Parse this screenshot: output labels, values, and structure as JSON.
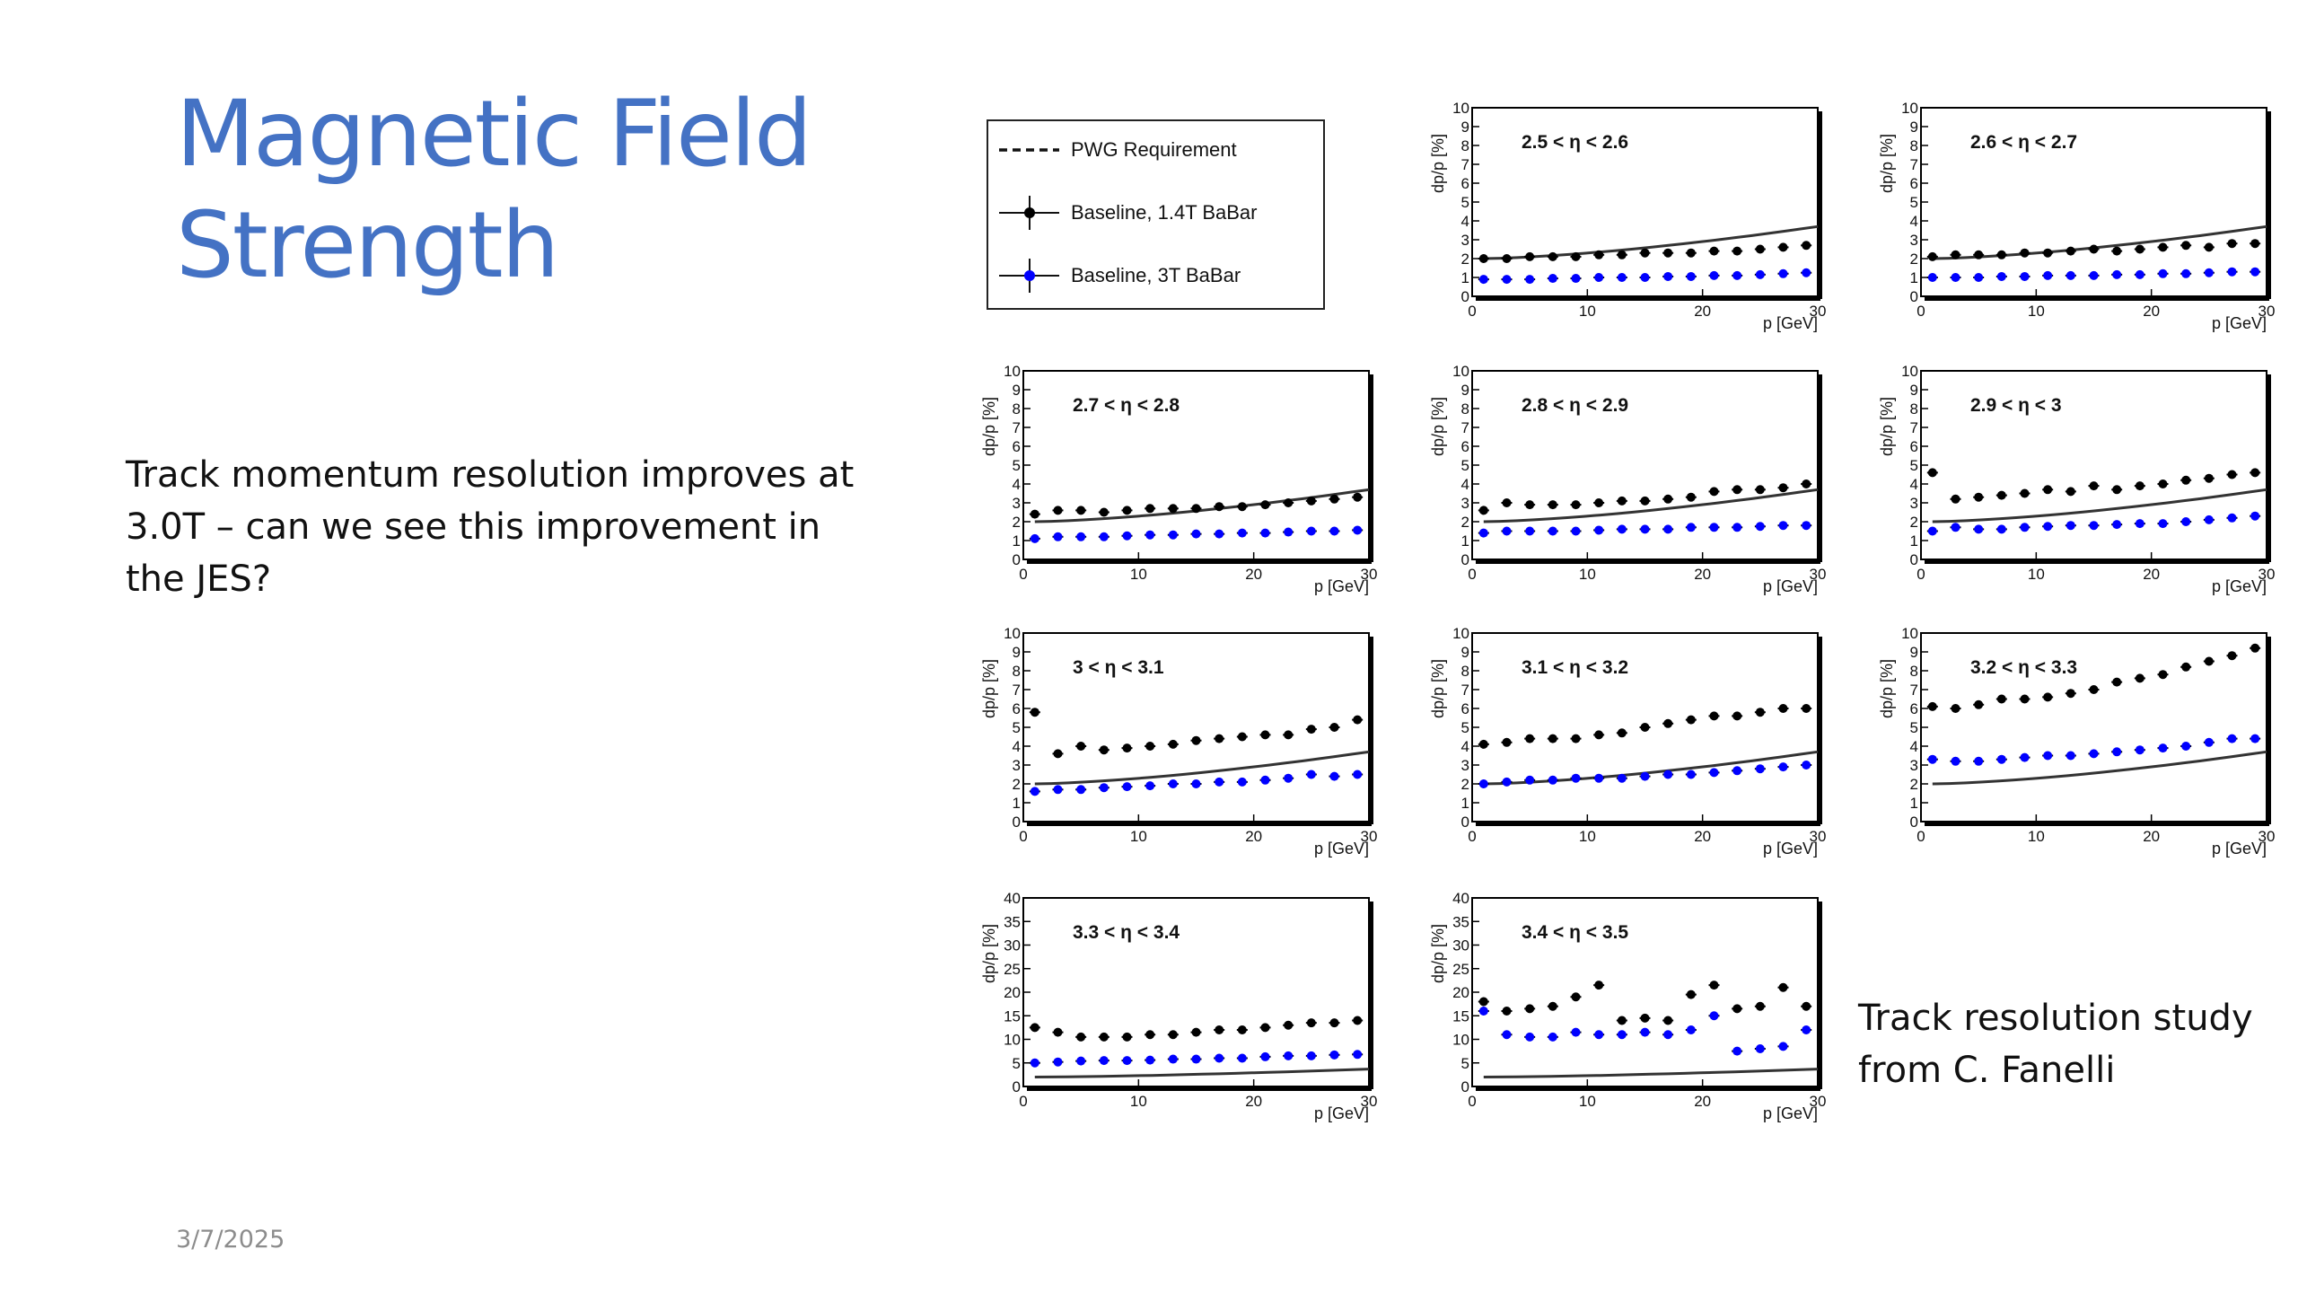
{
  "slide": {
    "title_line1": "Magnetic Field",
    "title_line2": "Strength",
    "body": "Track momentum resolution improves at 3.0T – can we see this improvement in the JES?",
    "caption_line1": "Track resolution study",
    "caption_line2": "from C. Fanelli",
    "date": "3/7/2025"
  },
  "colors": {
    "title": "#4472c4",
    "baseline_14T": "#000000",
    "baseline_3T": "#0000ff",
    "requirement": "#333333"
  },
  "legend": {
    "items": [
      {
        "label": "PWG Requirement",
        "style": "dashed-line"
      },
      {
        "label": "Baseline, 1.4T BaBar",
        "style": "black-marker"
      },
      {
        "label": "Baseline, 3T BaBar",
        "style": "blue-marker"
      }
    ]
  },
  "chart_data": [
    {
      "type": "scatter",
      "title": "2.5 < η < 2.6",
      "xlabel": "p [GeV]",
      "ylabel": "dp/p [%]",
      "xlim": [
        0,
        30
      ],
      "ylim": [
        0,
        10
      ],
      "x_ticks": [
        0,
        10,
        20,
        30
      ],
      "y_ticks": [
        0,
        1,
        2,
        3,
        4,
        5,
        6,
        7,
        8,
        9,
        10
      ],
      "requirement": [
        2.0,
        3.7
      ],
      "series": [
        {
          "name": "Baseline, 1.4T BaBar",
          "x": [
            1,
            3,
            5,
            7,
            9,
            11,
            13,
            15,
            17,
            19,
            21,
            23,
            25,
            27,
            29
          ],
          "y": [
            2.0,
            2.0,
            2.1,
            2.1,
            2.1,
            2.2,
            2.2,
            2.3,
            2.3,
            2.3,
            2.4,
            2.4,
            2.5,
            2.6,
            2.7
          ]
        },
        {
          "name": "Baseline, 3T BaBar",
          "x": [
            1,
            3,
            5,
            7,
            9,
            11,
            13,
            15,
            17,
            19,
            21,
            23,
            25,
            27,
            29
          ],
          "y": [
            0.9,
            0.9,
            0.9,
            0.95,
            0.95,
            1.0,
            1.0,
            1.0,
            1.05,
            1.05,
            1.1,
            1.1,
            1.15,
            1.2,
            1.25
          ]
        }
      ]
    },
    {
      "type": "scatter",
      "title": "2.6 < η < 2.7",
      "xlabel": "p [GeV]",
      "ylabel": "dp/p [%]",
      "xlim": [
        0,
        30
      ],
      "ylim": [
        0,
        10
      ],
      "x_ticks": [
        0,
        10,
        20,
        30
      ],
      "y_ticks": [
        0,
        1,
        2,
        3,
        4,
        5,
        6,
        7,
        8,
        9,
        10
      ],
      "requirement": [
        2.0,
        3.7
      ],
      "series": [
        {
          "name": "Baseline, 1.4T BaBar",
          "x": [
            1,
            3,
            5,
            7,
            9,
            11,
            13,
            15,
            17,
            19,
            21,
            23,
            25,
            27,
            29
          ],
          "y": [
            2.1,
            2.2,
            2.2,
            2.2,
            2.3,
            2.3,
            2.4,
            2.5,
            2.4,
            2.5,
            2.6,
            2.7,
            2.6,
            2.8,
            2.8
          ]
        },
        {
          "name": "Baseline, 3T BaBar",
          "x": [
            1,
            3,
            5,
            7,
            9,
            11,
            13,
            15,
            17,
            19,
            21,
            23,
            25,
            27,
            29
          ],
          "y": [
            1.0,
            1.0,
            1.0,
            1.05,
            1.05,
            1.1,
            1.1,
            1.1,
            1.15,
            1.15,
            1.2,
            1.2,
            1.25,
            1.3,
            1.3
          ]
        }
      ]
    },
    {
      "type": "scatter",
      "title": "2.7 < η < 2.8",
      "xlabel": "p [GeV]",
      "ylabel": "dp/p [%]",
      "xlim": [
        0,
        30
      ],
      "ylim": [
        0,
        10
      ],
      "x_ticks": [
        0,
        10,
        20,
        30
      ],
      "y_ticks": [
        0,
        1,
        2,
        3,
        4,
        5,
        6,
        7,
        8,
        9,
        10
      ],
      "requirement": [
        2.0,
        3.7
      ],
      "series": [
        {
          "name": "Baseline, 1.4T BaBar",
          "x": [
            1,
            3,
            5,
            7,
            9,
            11,
            13,
            15,
            17,
            19,
            21,
            23,
            25,
            27,
            29
          ],
          "y": [
            2.4,
            2.6,
            2.6,
            2.5,
            2.6,
            2.7,
            2.7,
            2.7,
            2.8,
            2.8,
            2.9,
            3.0,
            3.1,
            3.2,
            3.3
          ]
        },
        {
          "name": "Baseline, 3T BaBar",
          "x": [
            1,
            3,
            5,
            7,
            9,
            11,
            13,
            15,
            17,
            19,
            21,
            23,
            25,
            27,
            29
          ],
          "y": [
            1.1,
            1.2,
            1.2,
            1.2,
            1.25,
            1.3,
            1.3,
            1.35,
            1.35,
            1.4,
            1.4,
            1.45,
            1.5,
            1.5,
            1.55
          ]
        }
      ]
    },
    {
      "type": "scatter",
      "title": "2.8 < η < 2.9",
      "xlabel": "p [GeV]",
      "ylabel": "dp/p [%]",
      "xlim": [
        0,
        30
      ],
      "ylim": [
        0,
        10
      ],
      "x_ticks": [
        0,
        10,
        20,
        30
      ],
      "y_ticks": [
        0,
        1,
        2,
        3,
        4,
        5,
        6,
        7,
        8,
        9,
        10
      ],
      "requirement": [
        2.0,
        3.7
      ],
      "series": [
        {
          "name": "Baseline, 1.4T BaBar",
          "x": [
            1,
            3,
            5,
            7,
            9,
            11,
            13,
            15,
            17,
            19,
            21,
            23,
            25,
            27,
            29
          ],
          "y": [
            2.6,
            3.0,
            2.9,
            2.9,
            2.9,
            3.0,
            3.1,
            3.1,
            3.2,
            3.3,
            3.6,
            3.7,
            3.7,
            3.8,
            4.0
          ]
        },
        {
          "name": "Baseline, 3T BaBar",
          "x": [
            1,
            3,
            5,
            7,
            9,
            11,
            13,
            15,
            17,
            19,
            21,
            23,
            25,
            27,
            29
          ],
          "y": [
            1.4,
            1.5,
            1.5,
            1.5,
            1.5,
            1.55,
            1.6,
            1.6,
            1.6,
            1.7,
            1.7,
            1.7,
            1.75,
            1.8,
            1.8
          ]
        }
      ]
    },
    {
      "type": "scatter",
      "title": "2.9 < η < 3",
      "xlabel": "p [GeV]",
      "ylabel": "dp/p [%]",
      "xlim": [
        0,
        30
      ],
      "ylim": [
        0,
        10
      ],
      "x_ticks": [
        0,
        10,
        20,
        30
      ],
      "y_ticks": [
        0,
        1,
        2,
        3,
        4,
        5,
        6,
        7,
        8,
        9,
        10
      ],
      "requirement": [
        2.0,
        3.7
      ],
      "series": [
        {
          "name": "Baseline, 1.4T BaBar",
          "x": [
            1,
            3,
            5,
            7,
            9,
            11,
            13,
            15,
            17,
            19,
            21,
            23,
            25,
            27,
            29
          ],
          "y": [
            4.6,
            3.2,
            3.3,
            3.4,
            3.5,
            3.7,
            3.6,
            3.9,
            3.7,
            3.9,
            4.0,
            4.2,
            4.3,
            4.5,
            4.6
          ]
        },
        {
          "name": "Baseline, 3T BaBar",
          "x": [
            1,
            3,
            5,
            7,
            9,
            11,
            13,
            15,
            17,
            19,
            21,
            23,
            25,
            27,
            29
          ],
          "y": [
            1.5,
            1.7,
            1.6,
            1.6,
            1.7,
            1.75,
            1.8,
            1.8,
            1.85,
            1.9,
            1.9,
            2.0,
            2.1,
            2.2,
            2.3
          ]
        }
      ]
    },
    {
      "type": "scatter",
      "title": "3 < η < 3.1",
      "xlabel": "p [GeV]",
      "ylabel": "dp/p [%]",
      "xlim": [
        0,
        30
      ],
      "ylim": [
        0,
        10
      ],
      "x_ticks": [
        0,
        10,
        20,
        30
      ],
      "y_ticks": [
        0,
        1,
        2,
        3,
        4,
        5,
        6,
        7,
        8,
        9,
        10
      ],
      "requirement": [
        2.0,
        3.7
      ],
      "series": [
        {
          "name": "Baseline, 1.4T BaBar",
          "x": [
            1,
            3,
            5,
            7,
            9,
            11,
            13,
            15,
            17,
            19,
            21,
            23,
            25,
            27,
            29
          ],
          "y": [
            5.8,
            3.6,
            4.0,
            3.8,
            3.9,
            4.0,
            4.1,
            4.3,
            4.4,
            4.5,
            4.6,
            4.6,
            4.9,
            5.0,
            5.4
          ]
        },
        {
          "name": "Baseline, 3T BaBar",
          "x": [
            1,
            3,
            5,
            7,
            9,
            11,
            13,
            15,
            17,
            19,
            21,
            23,
            25,
            27,
            29
          ],
          "y": [
            1.6,
            1.7,
            1.7,
            1.8,
            1.85,
            1.9,
            2.0,
            2.0,
            2.1,
            2.1,
            2.2,
            2.3,
            2.5,
            2.4,
            2.5
          ]
        }
      ]
    },
    {
      "type": "scatter",
      "title": "3.1 < η < 3.2",
      "xlabel": "p [GeV]",
      "ylabel": "dp/p [%]",
      "xlim": [
        0,
        30
      ],
      "ylim": [
        0,
        10
      ],
      "x_ticks": [
        0,
        10,
        20,
        30
      ],
      "y_ticks": [
        0,
        1,
        2,
        3,
        4,
        5,
        6,
        7,
        8,
        9,
        10
      ],
      "requirement": [
        2.0,
        3.7
      ],
      "series": [
        {
          "name": "Baseline, 1.4T BaBar",
          "x": [
            1,
            3,
            5,
            7,
            9,
            11,
            13,
            15,
            17,
            19,
            21,
            23,
            25,
            27,
            29
          ],
          "y": [
            4.1,
            4.2,
            4.4,
            4.4,
            4.4,
            4.6,
            4.7,
            5.0,
            5.2,
            5.4,
            5.6,
            5.6,
            5.8,
            6.0,
            6.0
          ]
        },
        {
          "name": "Baseline, 3T BaBar",
          "x": [
            1,
            3,
            5,
            7,
            9,
            11,
            13,
            15,
            17,
            19,
            21,
            23,
            25,
            27,
            29
          ],
          "y": [
            2.0,
            2.1,
            2.2,
            2.2,
            2.3,
            2.3,
            2.3,
            2.4,
            2.5,
            2.5,
            2.6,
            2.7,
            2.8,
            2.9,
            3.0
          ]
        }
      ]
    },
    {
      "type": "scatter",
      "title": "3.2 < η < 3.3",
      "xlabel": "p [GeV]",
      "ylabel": "dp/p [%]",
      "xlim": [
        0,
        30
      ],
      "ylim": [
        0,
        10
      ],
      "x_ticks": [
        0,
        10,
        20,
        30
      ],
      "y_ticks": [
        0,
        1,
        2,
        3,
        4,
        5,
        6,
        7,
        8,
        9,
        10
      ],
      "requirement": [
        2.0,
        3.7
      ],
      "series": [
        {
          "name": "Baseline, 1.4T BaBar",
          "x": [
            1,
            3,
            5,
            7,
            9,
            11,
            13,
            15,
            17,
            19,
            21,
            23,
            25,
            27,
            29
          ],
          "y": [
            6.1,
            6.0,
            6.2,
            6.5,
            6.5,
            6.6,
            6.8,
            7.0,
            7.4,
            7.6,
            7.8,
            8.2,
            8.5,
            8.8,
            9.2
          ]
        },
        {
          "name": "Baseline, 3T BaBar",
          "x": [
            1,
            3,
            5,
            7,
            9,
            11,
            13,
            15,
            17,
            19,
            21,
            23,
            25,
            27,
            29
          ],
          "y": [
            3.3,
            3.2,
            3.2,
            3.3,
            3.4,
            3.5,
            3.5,
            3.6,
            3.7,
            3.8,
            3.9,
            4.0,
            4.2,
            4.4,
            4.4
          ]
        }
      ]
    },
    {
      "type": "scatter",
      "title": "3.3 < η < 3.4",
      "xlabel": "p [GeV]",
      "ylabel": "dp/p [%]",
      "xlim": [
        0,
        30
      ],
      "ylim": [
        0,
        40
      ],
      "x_ticks": [
        0,
        10,
        20,
        30
      ],
      "y_ticks": [
        0,
        5,
        10,
        15,
        20,
        25,
        30,
        35,
        40
      ],
      "requirement": [
        2.0,
        3.7
      ],
      "series": [
        {
          "name": "Baseline, 1.4T BaBar",
          "x": [
            1,
            3,
            5,
            7,
            9,
            11,
            13,
            15,
            17,
            19,
            21,
            23,
            25,
            27,
            29
          ],
          "y": [
            12.5,
            11.5,
            10.5,
            10.5,
            10.5,
            11.0,
            11.0,
            11.5,
            12.0,
            12.0,
            12.5,
            13.0,
            13.5,
            13.5,
            14.0
          ]
        },
        {
          "name": "Baseline, 3T BaBar",
          "x": [
            1,
            3,
            5,
            7,
            9,
            11,
            13,
            15,
            17,
            19,
            21,
            23,
            25,
            27,
            29
          ],
          "y": [
            5.0,
            5.2,
            5.4,
            5.5,
            5.5,
            5.6,
            5.8,
            5.8,
            6.0,
            6.0,
            6.3,
            6.5,
            6.5,
            6.7,
            6.8
          ]
        }
      ]
    },
    {
      "type": "scatter",
      "title": "3.4 < η < 3.5",
      "xlabel": "p [GeV]",
      "ylabel": "dp/p [%]",
      "xlim": [
        0,
        30
      ],
      "ylim": [
        0,
        40
      ],
      "x_ticks": [
        0,
        10,
        20,
        30
      ],
      "y_ticks": [
        0,
        5,
        10,
        15,
        20,
        25,
        30,
        35,
        40
      ],
      "requirement": [
        2.0,
        3.7
      ],
      "series": [
        {
          "name": "Baseline, 1.4T BaBar",
          "x": [
            1,
            3,
            5,
            7,
            9,
            11,
            13,
            15,
            17,
            19,
            21,
            23,
            25,
            27,
            29
          ],
          "y": [
            18.0,
            16.0,
            16.5,
            17.0,
            19.0,
            21.5,
            14.0,
            14.5,
            14.0,
            19.5,
            21.5,
            16.5,
            17.0,
            21.0,
            17.0
          ]
        },
        {
          "name": "Baseline, 3T BaBar",
          "x": [
            1,
            3,
            5,
            7,
            9,
            11,
            13,
            15,
            17,
            19,
            21,
            23,
            25,
            27,
            29
          ],
          "y": [
            16.0,
            11.0,
            10.5,
            10.5,
            11.5,
            11.0,
            11.0,
            11.5,
            11.0,
            12.0,
            15.0,
            7.5,
            8.0,
            8.5,
            12.0
          ]
        }
      ]
    }
  ]
}
